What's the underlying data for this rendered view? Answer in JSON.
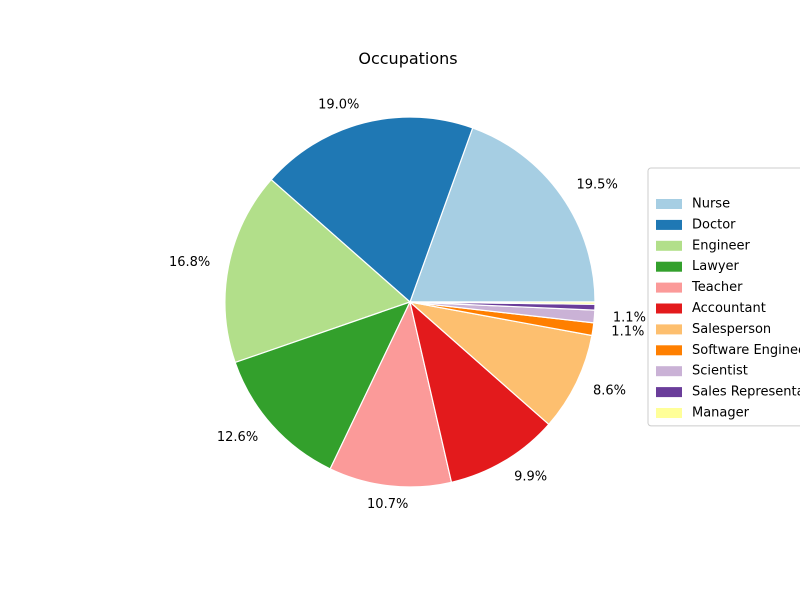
{
  "chart_data": {
    "type": "pie",
    "title": "Occupations",
    "categories": [
      "Nurse",
      "Doctor",
      "Engineer",
      "Lawyer",
      "Teacher",
      "Accountant",
      "Salesperson",
      "Software Engineer",
      "Scientist",
      "Sales Representative",
      "Manager"
    ],
    "values": [
      19.5,
      19.0,
      16.8,
      12.6,
      10.7,
      9.9,
      8.6,
      1.1,
      1.1,
      0.5,
      0.2
    ],
    "labels": [
      "19.5%",
      "19.0%",
      "16.8%",
      "12.6%",
      "10.7%",
      "9.9%",
      "8.6%",
      "1.1%",
      "1.1%",
      "",
      ""
    ],
    "colors": [
      "#a6cee3",
      "#1f78b4",
      "#b2df8a",
      "#33a02c",
      "#fb9a99",
      "#e31a1c",
      "#fdbf6f",
      "#ff7f00",
      "#cab2d6",
      "#6a3d9a",
      "#ffff99"
    ],
    "legend_placement": "right",
    "start_angle_deg": 0,
    "direction": "counterclockwise"
  }
}
